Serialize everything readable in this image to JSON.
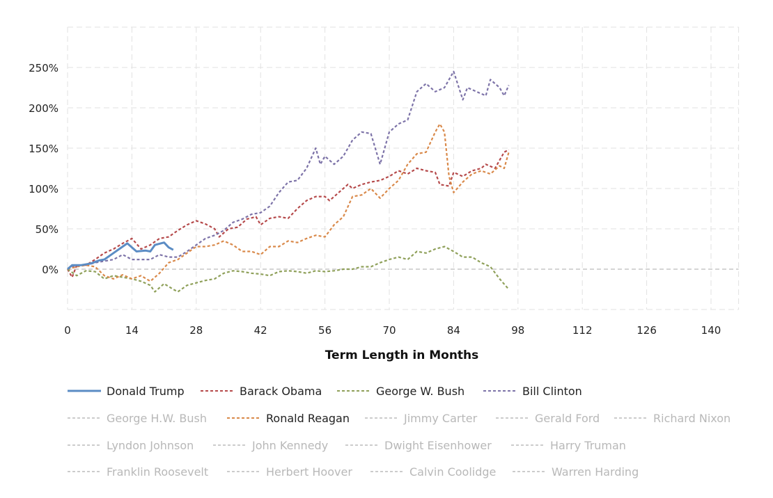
{
  "chart_data": {
    "type": "line",
    "title": "",
    "xlabel": "Term Length in Months",
    "ylabel": "",
    "xlim": [
      0,
      146
    ],
    "ylim": [
      -50,
      300
    ],
    "x_ticks": [
      0,
      14,
      28,
      42,
      56,
      70,
      84,
      98,
      112,
      126,
      140
    ],
    "y_ticks": [
      0,
      50,
      100,
      150,
      200,
      250
    ],
    "y_tick_format": "%",
    "grid": true,
    "legend_placement": "bottom",
    "series": [
      {
        "name": "Donald Trump",
        "color": "#5b8cc4",
        "style": "solid",
        "visible": true,
        "points": [
          [
            0,
            0
          ],
          [
            1,
            5
          ],
          [
            3,
            5
          ],
          [
            5,
            7
          ],
          [
            7,
            11
          ],
          [
            8,
            12
          ],
          [
            10,
            20
          ],
          [
            12,
            28
          ],
          [
            13,
            32
          ],
          [
            15,
            22
          ],
          [
            17,
            23
          ],
          [
            18,
            22
          ],
          [
            19,
            30
          ],
          [
            21,
            33
          ],
          [
            22,
            27
          ],
          [
            23,
            24
          ]
        ]
      },
      {
        "name": "Barack Obama",
        "color": "#b5494a",
        "style": "dashed",
        "visible": true,
        "points": [
          [
            0,
            0
          ],
          [
            1,
            -10
          ],
          [
            2,
            5
          ],
          [
            4,
            5
          ],
          [
            6,
            12
          ],
          [
            8,
            20
          ],
          [
            10,
            25
          ],
          [
            12,
            32
          ],
          [
            14,
            38
          ],
          [
            16,
            25
          ],
          [
            18,
            30
          ],
          [
            20,
            38
          ],
          [
            22,
            40
          ],
          [
            24,
            48
          ],
          [
            26,
            55
          ],
          [
            28,
            60
          ],
          [
            30,
            56
          ],
          [
            32,
            50
          ],
          [
            33,
            40
          ],
          [
            35,
            50
          ],
          [
            37,
            52
          ],
          [
            39,
            62
          ],
          [
            41,
            65
          ],
          [
            42,
            55
          ],
          [
            44,
            63
          ],
          [
            46,
            65
          ],
          [
            48,
            63
          ],
          [
            50,
            75
          ],
          [
            52,
            85
          ],
          [
            54,
            90
          ],
          [
            56,
            90
          ],
          [
            57,
            85
          ],
          [
            59,
            95
          ],
          [
            61,
            105
          ],
          [
            62,
            100
          ],
          [
            64,
            105
          ],
          [
            66,
            108
          ],
          [
            68,
            110
          ],
          [
            70,
            115
          ],
          [
            72,
            122
          ],
          [
            74,
            118
          ],
          [
            76,
            125
          ],
          [
            78,
            122
          ],
          [
            80,
            120
          ],
          [
            81,
            105
          ],
          [
            83,
            103
          ],
          [
            84,
            120
          ],
          [
            86,
            115
          ],
          [
            88,
            122
          ],
          [
            90,
            125
          ],
          [
            91,
            130
          ],
          [
            93,
            125
          ],
          [
            95,
            145
          ],
          [
            96,
            148
          ]
        ]
      },
      {
        "name": "George W. Bush",
        "color": "#8fa05a",
        "style": "dashed",
        "visible": true,
        "points": [
          [
            0,
            0
          ],
          [
            2,
            -8
          ],
          [
            4,
            -2
          ],
          [
            6,
            -3
          ],
          [
            8,
            -12
          ],
          [
            10,
            -8
          ],
          [
            12,
            -10
          ],
          [
            14,
            -12
          ],
          [
            16,
            -15
          ],
          [
            18,
            -20
          ],
          [
            19,
            -28
          ],
          [
            21,
            -18
          ],
          [
            23,
            -25
          ],
          [
            24,
            -28
          ],
          [
            26,
            -20
          ],
          [
            28,
            -17
          ],
          [
            30,
            -14
          ],
          [
            32,
            -12
          ],
          [
            34,
            -5
          ],
          [
            36,
            -2
          ],
          [
            38,
            -3
          ],
          [
            40,
            -5
          ],
          [
            42,
            -6
          ],
          [
            44,
            -8
          ],
          [
            46,
            -3
          ],
          [
            48,
            -2
          ],
          [
            50,
            -3
          ],
          [
            52,
            -5
          ],
          [
            54,
            -2
          ],
          [
            56,
            -3
          ],
          [
            58,
            -2
          ],
          [
            60,
            0
          ],
          [
            62,
            0
          ],
          [
            64,
            3
          ],
          [
            66,
            3
          ],
          [
            68,
            8
          ],
          [
            70,
            12
          ],
          [
            72,
            15
          ],
          [
            74,
            12
          ],
          [
            76,
            22
          ],
          [
            78,
            20
          ],
          [
            80,
            25
          ],
          [
            82,
            28
          ],
          [
            84,
            22
          ],
          [
            86,
            15
          ],
          [
            88,
            15
          ],
          [
            90,
            8
          ],
          [
            92,
            3
          ],
          [
            94,
            -12
          ],
          [
            96,
            -25
          ]
        ]
      },
      {
        "name": "Bill Clinton",
        "color": "#7d73a8",
        "style": "dashed",
        "visible": true,
        "points": [
          [
            0,
            0
          ],
          [
            2,
            5
          ],
          [
            4,
            5
          ],
          [
            6,
            8
          ],
          [
            8,
            10
          ],
          [
            10,
            12
          ],
          [
            12,
            18
          ],
          [
            14,
            12
          ],
          [
            16,
            12
          ],
          [
            18,
            12
          ],
          [
            20,
            18
          ],
          [
            22,
            15
          ],
          [
            24,
            15
          ],
          [
            26,
            22
          ],
          [
            28,
            30
          ],
          [
            30,
            38
          ],
          [
            32,
            42
          ],
          [
            34,
            48
          ],
          [
            36,
            58
          ],
          [
            38,
            62
          ],
          [
            40,
            68
          ],
          [
            42,
            70
          ],
          [
            44,
            78
          ],
          [
            46,
            95
          ],
          [
            48,
            108
          ],
          [
            50,
            110
          ],
          [
            52,
            125
          ],
          [
            54,
            150
          ],
          [
            55,
            130
          ],
          [
            56,
            140
          ],
          [
            58,
            130
          ],
          [
            60,
            140
          ],
          [
            62,
            160
          ],
          [
            64,
            170
          ],
          [
            66,
            168
          ],
          [
            68,
            130
          ],
          [
            70,
            170
          ],
          [
            72,
            180
          ],
          [
            74,
            185
          ],
          [
            76,
            220
          ],
          [
            78,
            230
          ],
          [
            80,
            220
          ],
          [
            82,
            225
          ],
          [
            84,
            245
          ],
          [
            86,
            210
          ],
          [
            87,
            225
          ],
          [
            89,
            220
          ],
          [
            91,
            215
          ],
          [
            92,
            235
          ],
          [
            94,
            225
          ],
          [
            95,
            215
          ],
          [
            96,
            228
          ]
        ]
      },
      {
        "name": "George H.W. Bush",
        "color": "#cccccc",
        "style": "dashed",
        "visible": false,
        "points": []
      },
      {
        "name": "Ronald Reagan",
        "color": "#d9894a",
        "style": "dashed",
        "visible": true,
        "points": [
          [
            0,
            0
          ],
          [
            2,
            3
          ],
          [
            4,
            5
          ],
          [
            6,
            3
          ],
          [
            8,
            -8
          ],
          [
            10,
            -12
          ],
          [
            12,
            -7
          ],
          [
            14,
            -12
          ],
          [
            16,
            -8
          ],
          [
            18,
            -15
          ],
          [
            20,
            -5
          ],
          [
            22,
            8
          ],
          [
            24,
            12
          ],
          [
            26,
            20
          ],
          [
            28,
            28
          ],
          [
            30,
            28
          ],
          [
            32,
            30
          ],
          [
            34,
            35
          ],
          [
            36,
            30
          ],
          [
            38,
            22
          ],
          [
            40,
            22
          ],
          [
            42,
            18
          ],
          [
            44,
            28
          ],
          [
            46,
            28
          ],
          [
            48,
            35
          ],
          [
            50,
            33
          ],
          [
            52,
            38
          ],
          [
            54,
            42
          ],
          [
            56,
            40
          ],
          [
            58,
            55
          ],
          [
            60,
            65
          ],
          [
            62,
            90
          ],
          [
            64,
            92
          ],
          [
            66,
            100
          ],
          [
            68,
            88
          ],
          [
            70,
            100
          ],
          [
            72,
            110
          ],
          [
            74,
            130
          ],
          [
            76,
            143
          ],
          [
            78,
            145
          ],
          [
            80,
            170
          ],
          [
            81,
            180
          ],
          [
            82,
            170
          ],
          [
            83,
            115
          ],
          [
            84,
            95
          ],
          [
            86,
            108
          ],
          [
            88,
            118
          ],
          [
            90,
            122
          ],
          [
            92,
            118
          ],
          [
            94,
            128
          ],
          [
            95,
            125
          ],
          [
            96,
            145
          ]
        ]
      },
      {
        "name": "Jimmy Carter",
        "color": "#cccccc",
        "style": "dashed",
        "visible": false,
        "points": []
      },
      {
        "name": "Gerald Ford",
        "color": "#cccccc",
        "style": "dashed",
        "visible": false,
        "points": []
      },
      {
        "name": "Richard Nixon",
        "color": "#cccccc",
        "style": "dashed",
        "visible": false,
        "points": []
      },
      {
        "name": "Lyndon Johnson",
        "color": "#cccccc",
        "style": "dashed",
        "visible": false,
        "points": []
      },
      {
        "name": "John Kennedy",
        "color": "#cccccc",
        "style": "dashed",
        "visible": false,
        "points": []
      },
      {
        "name": "Dwight Eisenhower",
        "color": "#cccccc",
        "style": "dashed",
        "visible": false,
        "points": []
      },
      {
        "name": "Harry Truman",
        "color": "#cccccc",
        "style": "dashed",
        "visible": false,
        "points": []
      },
      {
        "name": "Franklin Roosevelt",
        "color": "#cccccc",
        "style": "dashed",
        "visible": false,
        "points": []
      },
      {
        "name": "Herbert Hoover",
        "color": "#cccccc",
        "style": "dashed",
        "visible": false,
        "points": []
      },
      {
        "name": "Calvin Coolidge",
        "color": "#cccccc",
        "style": "dashed",
        "visible": false,
        "points": []
      },
      {
        "name": "Warren Harding",
        "color": "#cccccc",
        "style": "dashed",
        "visible": false,
        "points": []
      }
    ]
  }
}
